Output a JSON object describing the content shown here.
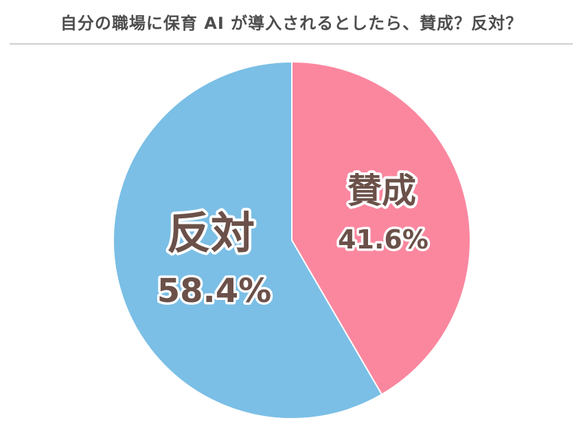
{
  "chart_data": {
    "type": "pie",
    "title": "自分の職場に保育 AI が導入されるとしたら、賛成？反対？",
    "slices": [
      {
        "label": "賛成",
        "value": 41.6,
        "value_label": "41.6%",
        "color": "#fb879f"
      },
      {
        "label": "反対",
        "value": 58.4,
        "value_label": "58.4%",
        "color": "#7bbfe6"
      }
    ],
    "start": "top, clockwise",
    "label_color": "#6b5149"
  }
}
